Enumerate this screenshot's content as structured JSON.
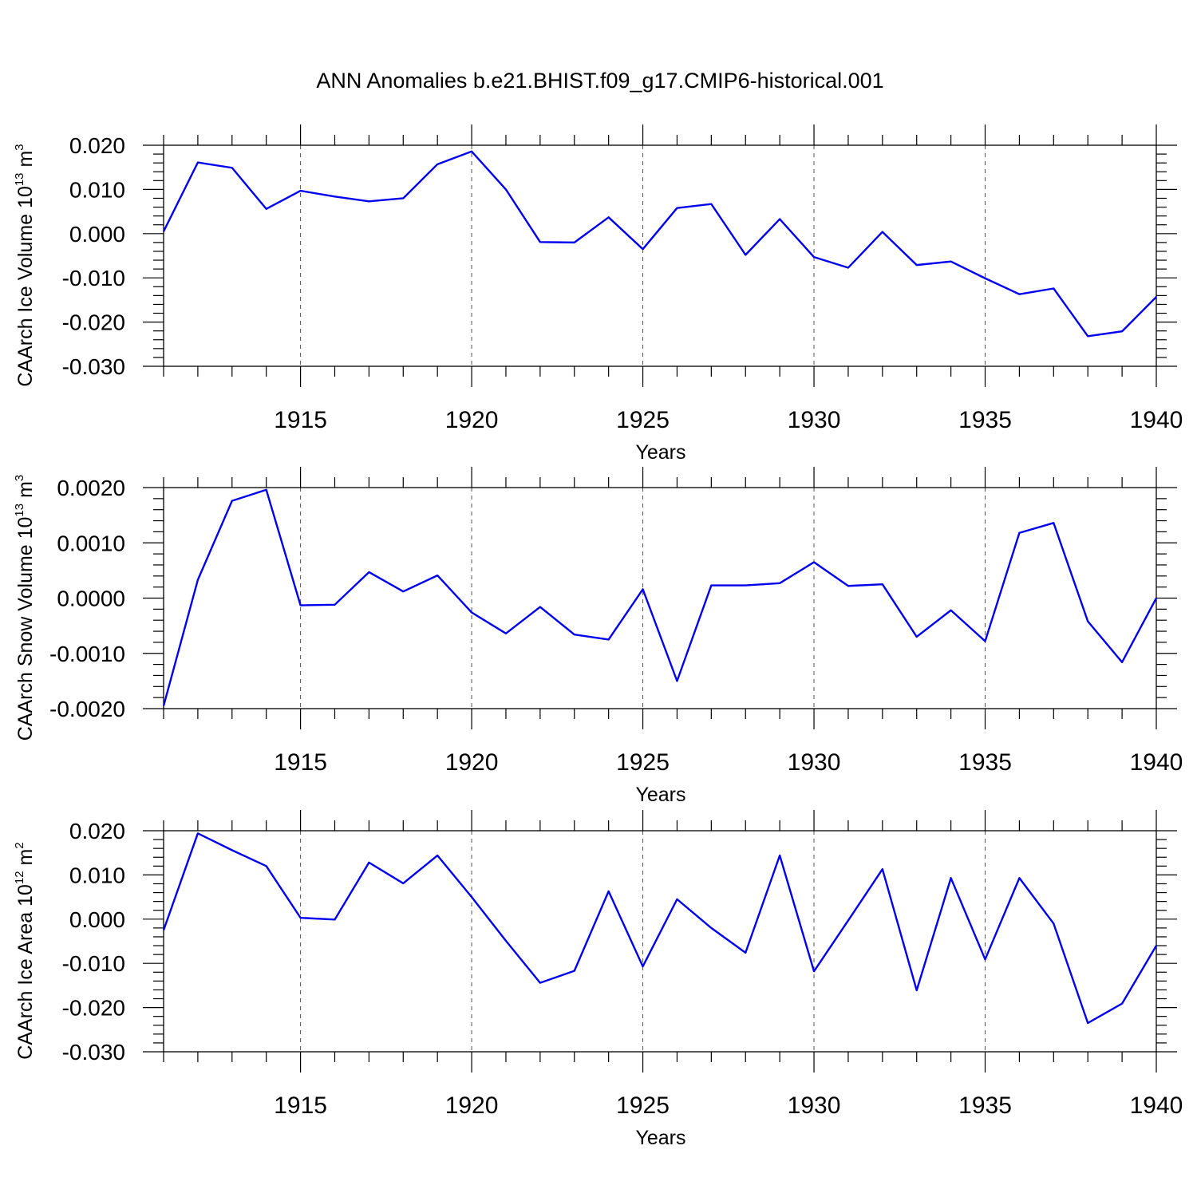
{
  "title": "ANN Anomalies b.e21.BHIST.f09_g17.CMIP6-historical.001",
  "chart_data": [
    {
      "type": "line",
      "ylabel": "CAArch Ice Volume 10",
      "ylabel_exp": "13",
      "ylabel_unit": " m",
      "ylabel_unit_exp": "3",
      "xlabel": "Years",
      "xlim": [
        1911,
        1940
      ],
      "ylim": [
        -0.03,
        0.02
      ],
      "xticks": [
        1915,
        1920,
        1925,
        1930,
        1935,
        1940
      ],
      "yticks": [
        -0.03,
        -0.02,
        -0.01,
        0.0,
        0.01,
        0.02
      ],
      "ytick_labels": [
        "-0.030",
        "-0.020",
        "-0.010",
        "0.000",
        "0.010",
        "0.020"
      ],
      "grid": "dashed vertical at major x ticks",
      "x": [
        1911,
        1912,
        1913,
        1914,
        1915,
        1916,
        1917,
        1918,
        1919,
        1920,
        1921,
        1922,
        1923,
        1924,
        1925,
        1926,
        1927,
        1928,
        1929,
        1930,
        1931,
        1932,
        1933,
        1934,
        1935,
        1936,
        1937,
        1938,
        1939,
        1940
      ],
      "series": [
        {
          "color": "#0000ee",
          "values": [
            0.0005,
            0.0161,
            0.0149,
            0.0056,
            0.0097,
            0.0084,
            0.0073,
            0.008,
            0.0157,
            0.0186,
            0.01,
            -0.0019,
            -0.002,
            0.0037,
            -0.0035,
            0.0058,
            0.0067,
            -0.0048,
            0.0033,
            -0.0053,
            -0.0077,
            0.0004,
            -0.0071,
            -0.0063,
            -0.0101,
            -0.0137,
            -0.0124,
            -0.0232,
            -0.0221,
            -0.0143
          ]
        }
      ]
    },
    {
      "type": "line",
      "ylabel": "CAArch Snow Volume 10",
      "ylabel_exp": "13",
      "ylabel_unit": " m",
      "ylabel_unit_exp": "3",
      "xlabel": "Years",
      "xlim": [
        1911,
        1940
      ],
      "ylim": [
        -0.002,
        0.002
      ],
      "xticks": [
        1915,
        1920,
        1925,
        1930,
        1935,
        1940
      ],
      "yticks": [
        -0.002,
        -0.001,
        0.0,
        0.001,
        0.002
      ],
      "ytick_labels": [
        "-0.0020",
        "-0.0010",
        "0.0000",
        "0.0010",
        "0.0020"
      ],
      "grid": "dashed vertical at major x ticks",
      "x": [
        1911,
        1912,
        1913,
        1914,
        1915,
        1916,
        1917,
        1918,
        1919,
        1920,
        1921,
        1922,
        1923,
        1924,
        1925,
        1926,
        1927,
        1928,
        1929,
        1930,
        1931,
        1932,
        1933,
        1934,
        1935,
        1936,
        1937,
        1938,
        1939,
        1940
      ],
      "series": [
        {
          "color": "#0000ee",
          "values": [
            -0.00195,
            0.00033,
            0.00176,
            0.00196,
            -0.00013,
            -0.00012,
            0.00047,
            0.00012,
            0.00041,
            -0.00026,
            -0.00064,
            -0.00016,
            -0.00066,
            -0.00075,
            0.00016,
            -0.0015,
            0.00023,
            0.00023,
            0.00027,
            0.00065,
            0.00022,
            0.00025,
            -0.0007,
            -0.00022,
            -0.00078,
            0.00118,
            0.00136,
            -0.00042,
            -0.00116,
            0.0
          ]
        }
      ]
    },
    {
      "type": "line",
      "ylabel": "CAArch Ice Area 10",
      "ylabel_exp": "12",
      "ylabel_unit": " m",
      "ylabel_unit_exp": "2",
      "xlabel": "Years",
      "xlim": [
        1911,
        1940
      ],
      "ylim": [
        -0.03,
        0.02
      ],
      "xticks": [
        1915,
        1920,
        1925,
        1930,
        1935,
        1940
      ],
      "yticks": [
        -0.03,
        -0.02,
        -0.01,
        0.0,
        0.01,
        0.02
      ],
      "ytick_labels": [
        "-0.030",
        "-0.020",
        "-0.010",
        "0.000",
        "0.010",
        "0.020"
      ],
      "grid": "dashed vertical at major x ticks",
      "x": [
        1911,
        1912,
        1913,
        1914,
        1915,
        1916,
        1917,
        1918,
        1919,
        1920,
        1921,
        1922,
        1923,
        1924,
        1925,
        1926,
        1927,
        1928,
        1929,
        1930,
        1931,
        1932,
        1933,
        1934,
        1935,
        1936,
        1937,
        1938,
        1939,
        1940
      ],
      "series": [
        {
          "color": "#0000ee",
          "values": [
            -0.0025,
            0.0194,
            0.0156,
            0.012,
            0.0003,
            -0.0001,
            0.0128,
            0.0081,
            0.0144,
            0.005,
            -0.0049,
            -0.0144,
            -0.0117,
            0.0063,
            -0.0107,
            0.0045,
            -0.002,
            -0.0076,
            0.0144,
            -0.0118,
            -0.0003,
            0.0113,
            -0.0161,
            0.0093,
            -0.0091,
            0.0093,
            -0.001,
            -0.0235,
            -0.0191,
            -0.006
          ]
        }
      ]
    }
  ]
}
